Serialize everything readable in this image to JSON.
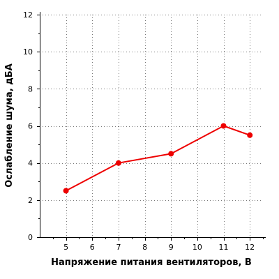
{
  "chart_data": {
    "type": "line",
    "title": "",
    "xlabel": "Напряжение питания вентиляторов, В",
    "ylabel": "Ослабление шума, дБА",
    "xlim": [
      4,
      12.5
    ],
    "ylim": [
      0,
      12
    ],
    "x_ticks": [
      5,
      6,
      7,
      8,
      9,
      10,
      11,
      12
    ],
    "y_ticks": [
      0,
      2,
      4,
      6,
      8,
      10,
      12
    ],
    "grid": true,
    "series": [
      {
        "x": [
          5,
          7,
          9,
          11,
          12
        ],
        "y": [
          2.5,
          4,
          4.5,
          6,
          5.5
        ],
        "color": "#ee0000"
      }
    ]
  }
}
